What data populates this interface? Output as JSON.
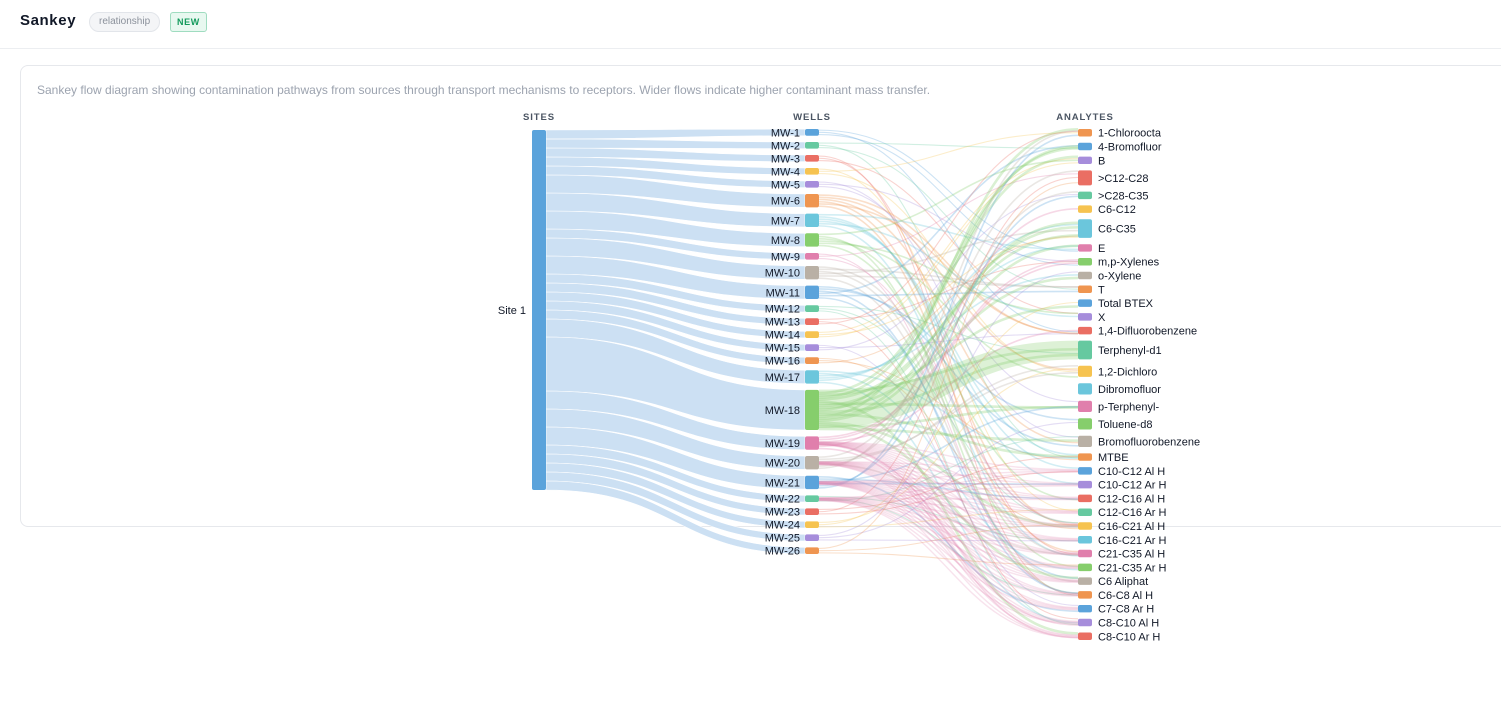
{
  "header": {
    "title": "Sankey",
    "tag": "relationship",
    "badge": "NEW"
  },
  "description": "Sankey flow diagram showing contamination pathways from sources through transport mechanisms to receptors. Wider flows indicate higher contaminant mass transfer.",
  "diagram": {
    "columns": [
      "SITES",
      "WELLS",
      "ANALYTES"
    ],
    "sites": [
      {
        "name": "Site 1",
        "color": "#5ba3db"
      }
    ],
    "wells": [
      {
        "name": "MW-1",
        "weight": 2,
        "color": "#5ba3db"
      },
      {
        "name": "MW-2",
        "weight": 2,
        "color": "#66c9a0"
      },
      {
        "name": "MW-3",
        "weight": 2,
        "color": "#ea6e63"
      },
      {
        "name": "MW-4",
        "weight": 2,
        "color": "#f6c350"
      },
      {
        "name": "MW-5",
        "weight": 2,
        "color": "#a68ddb"
      },
      {
        "name": "MW-6",
        "weight": 4,
        "color": "#ef9550"
      },
      {
        "name": "MW-7",
        "weight": 4,
        "color": "#6bc6dc"
      },
      {
        "name": "MW-8",
        "weight": 4,
        "color": "#86ce6c"
      },
      {
        "name": "MW-9",
        "weight": 2,
        "color": "#e07fac"
      },
      {
        "name": "MW-10",
        "weight": 4,
        "color": "#b9b0a5"
      },
      {
        "name": "MW-11",
        "weight": 4,
        "color": "#5ba3db"
      },
      {
        "name": "MW-12",
        "weight": 2,
        "color": "#66c9a0"
      },
      {
        "name": "MW-13",
        "weight": 2,
        "color": "#ea6e63"
      },
      {
        "name": "MW-14",
        "weight": 2,
        "color": "#f6c350"
      },
      {
        "name": "MW-15",
        "weight": 2,
        "color": "#a68ddb"
      },
      {
        "name": "MW-16",
        "weight": 2,
        "color": "#ef9550"
      },
      {
        "name": "MW-17",
        "weight": 4,
        "color": "#6bc6dc"
      },
      {
        "name": "MW-18",
        "weight": 12,
        "color": "#86ce6c"
      },
      {
        "name": "MW-19",
        "weight": 4,
        "color": "#e07fac"
      },
      {
        "name": "MW-20",
        "weight": 4,
        "color": "#b9b0a5"
      },
      {
        "name": "MW-21",
        "weight": 4,
        "color": "#5ba3db"
      },
      {
        "name": "MW-22",
        "weight": 2,
        "color": "#66c9a0"
      },
      {
        "name": "MW-23",
        "weight": 2,
        "color": "#ea6e63"
      },
      {
        "name": "MW-24",
        "weight": 2,
        "color": "#f6c350"
      },
      {
        "name": "MW-25",
        "weight": 2,
        "color": "#a68ddb"
      },
      {
        "name": "MW-26",
        "weight": 2,
        "color": "#ef9550"
      }
    ],
    "analytes": [
      {
        "name": "1-Chloroocta",
        "weight": 2,
        "color": "#ef9550"
      },
      {
        "name": "4-Bromofluor",
        "weight": 2,
        "color": "#5ba3db"
      },
      {
        "name": "B",
        "weight": 2,
        "color": "#a68ddb"
      },
      {
        "name": ">C12-C28",
        "weight": 4,
        "color": "#ea6e63"
      },
      {
        "name": ">C28-C35",
        "weight": 2,
        "color": "#66c9a0"
      },
      {
        "name": "C6-C12",
        "weight": 2,
        "color": "#f6c350"
      },
      {
        "name": "C6-C35",
        "weight": 5,
        "color": "#6bc6dc"
      },
      {
        "name": "E",
        "weight": 2,
        "color": "#e07fac"
      },
      {
        "name": "m,p-Xylenes",
        "weight": 2,
        "color": "#86ce6c"
      },
      {
        "name": "o-Xylene",
        "weight": 2,
        "color": "#b9b0a5"
      },
      {
        "name": "T",
        "weight": 2,
        "color": "#ef9550"
      },
      {
        "name": "Total BTEX",
        "weight": 2,
        "color": "#5ba3db"
      },
      {
        "name": "X",
        "weight": 2,
        "color": "#a68ddb"
      },
      {
        "name": "1,4-Difluorobenzene",
        "weight": 2,
        "color": "#ea6e63"
      },
      {
        "name": "Terphenyl-d1",
        "weight": 5,
        "color": "#66c9a0"
      },
      {
        "name": "1,2-Dichloro",
        "weight": 3,
        "color": "#f6c350"
      },
      {
        "name": "Dibromofluor",
        "weight": 3,
        "color": "#6bc6dc"
      },
      {
        "name": "p-Terphenyl-",
        "weight": 3,
        "color": "#e07fac"
      },
      {
        "name": "Toluene-d8",
        "weight": 3,
        "color": "#86ce6c"
      },
      {
        "name": "Bromofluorobenzene",
        "weight": 3,
        "color": "#b9b0a5"
      },
      {
        "name": "MTBE",
        "weight": 2,
        "color": "#ef9550"
      },
      {
        "name": "C10-C12 Al H",
        "weight": 2,
        "color": "#5ba3db"
      },
      {
        "name": "C10-C12 Ar H",
        "weight": 2,
        "color": "#a68ddb"
      },
      {
        "name": "C12-C16 Al H",
        "weight": 2,
        "color": "#ea6e63"
      },
      {
        "name": "C12-C16 Ar H",
        "weight": 2,
        "color": "#66c9a0"
      },
      {
        "name": "C16-C21 Al H",
        "weight": 2,
        "color": "#f6c350"
      },
      {
        "name": "C16-C21 Ar H",
        "weight": 2,
        "color": "#6bc6dc"
      },
      {
        "name": "C21-C35 Al H",
        "weight": 2,
        "color": "#e07fac"
      },
      {
        "name": "C21-C35 Ar H",
        "weight": 2,
        "color": "#86ce6c"
      },
      {
        "name": "C6 Aliphat",
        "weight": 2,
        "color": "#b9b0a5"
      },
      {
        "name": "C6-C8 Al H",
        "weight": 2,
        "color": "#ef9550"
      },
      {
        "name": "C7-C8 Ar H",
        "weight": 2,
        "color": "#5ba3db"
      },
      {
        "name": "C8-C10 Al H",
        "weight": 2,
        "color": "#a68ddb"
      },
      {
        "name": "C8-C10 Ar H",
        "weight": 2,
        "color": "#ea6e63"
      }
    ]
  }
}
